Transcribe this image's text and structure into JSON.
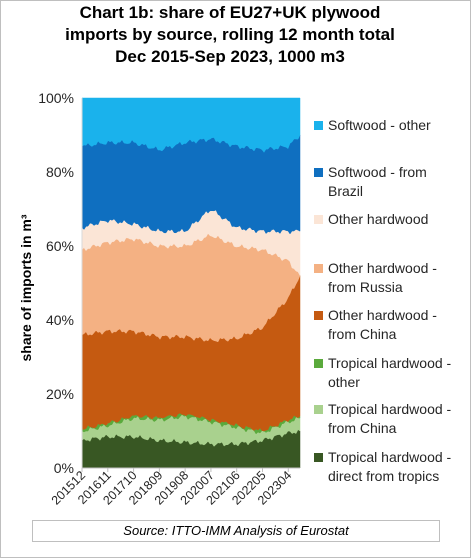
{
  "chart_data": {
    "type": "area",
    "stacked": true,
    "percent": true,
    "title_lines": [
      "Chart 1b: share of EU27+UK plywood",
      "imports by source, rolling 12 month total",
      "Dec 2015-Sep 2023, 1000 m3"
    ],
    "ylabel": "share of imports in m³",
    "ylim": [
      0,
      100
    ],
    "yticks": [
      "0%",
      "20%",
      "40%",
      "60%",
      "80%",
      "100%"
    ],
    "xtick_labels": [
      "201512",
      "201611",
      "201710",
      "201809",
      "201908",
      "202007",
      "202106",
      "202205",
      "202304"
    ],
    "x_start": "201512",
    "x_end": "202309",
    "grid": false,
    "legend_position": "right",
    "cumulative_tops_percent": {
      "periods": [
        "201512",
        "201611",
        "201710",
        "201809",
        "201908",
        "202007",
        "202106",
        "202205",
        "202304",
        "202309"
      ],
      "Tropical hardwood - direct from tropics": [
        7.5,
        8.5,
        8.5,
        7.5,
        7,
        6.5,
        6.5,
        7.5,
        9.5,
        10
      ],
      "Tropical hardwood - from China": [
        10,
        11.5,
        13.5,
        13,
        14,
        12.5,
        11,
        9.5,
        12.5,
        13.5
      ],
      "Tropical hardwood - other": [
        10.5,
        12,
        14,
        13.5,
        14.5,
        13,
        11.5,
        10,
        13,
        14
      ],
      "Other hardwood - from China": [
        36,
        37,
        37,
        35.5,
        35.5,
        34.5,
        35,
        38,
        46,
        52
      ],
      "Other hardwood - from Russia": [
        59,
        61,
        62,
        60,
        60,
        63,
        60,
        59,
        56,
        52
      ],
      "Other hardwood": [
        65,
        67,
        66,
        64,
        64,
        70,
        65,
        64,
        64,
        64
      ],
      "Softwood - from Brazil": [
        87,
        88,
        88,
        86,
        88,
        89,
        87,
        86,
        87,
        90
      ],
      "Softwood - other": [
        100,
        100,
        100,
        100,
        100,
        100,
        100,
        100,
        100,
        100
      ]
    },
    "series": [
      {
        "name": "Softwood - other",
        "color": "#1ab2ec",
        "legend_lines": [
          "Softwood - other"
        ]
      },
      {
        "name": "Softwood - from Brazil",
        "color": "#0f6fc0",
        "legend_lines": [
          "Softwood - from",
          "Brazil"
        ]
      },
      {
        "name": "Other hardwood",
        "color": "#fbe5d6",
        "legend_lines": [
          "Other hardwood"
        ]
      },
      {
        "name": "Other hardwood - from Russia",
        "color": "#f4b183",
        "legend_lines": [
          "Other hardwood -",
          "from Russia"
        ]
      },
      {
        "name": "Other hardwood - from China",
        "color": "#c55a11",
        "legend_lines": [
          "Other hardwood -",
          "from China"
        ]
      },
      {
        "name": "Tropical hardwood - other",
        "color": "#5aaa3c",
        "legend_lines": [
          "Tropical hardwood -",
          "other"
        ]
      },
      {
        "name": "Tropical hardwood - from China",
        "color": "#a9d18e",
        "legend_lines": [
          "Tropical hardwood -",
          "from China"
        ]
      },
      {
        "name": "Tropical hardwood - direct from tropics",
        "color": "#385723",
        "legend_lines": [
          "Tropical hardwood -",
          "direct from tropics"
        ]
      }
    ],
    "source": "Source: ITTO-IMM Analysis of Eurostat"
  }
}
